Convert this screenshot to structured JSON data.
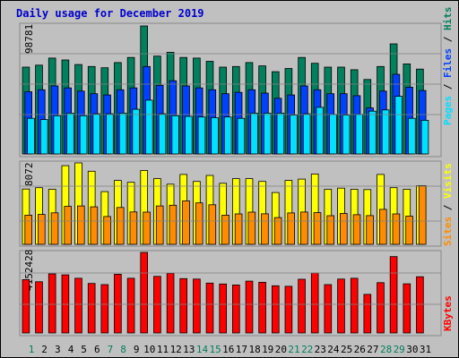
{
  "chart_data": [
    {
      "type": "bar",
      "title": "Daily usage for December 2019",
      "panel": "pages-files-hits",
      "ytick": "98781",
      "categories": [
        "1",
        "2",
        "3",
        "4",
        "5",
        "6",
        "7",
        "8",
        "9",
        "10",
        "11",
        "12",
        "13",
        "14",
        "15",
        "16",
        "17",
        "18",
        "19",
        "20",
        "21",
        "22",
        "23",
        "24",
        "25",
        "26",
        "27",
        "28",
        "29",
        "30",
        "31"
      ],
      "weekend_days": [
        "1",
        "7",
        "8",
        "14",
        "15",
        "21",
        "22",
        "28",
        "29"
      ],
      "series": [
        {
          "name": "Hits",
          "color": "#00805c",
          "values": [
            67000,
            68500,
            74000,
            72500,
            69000,
            67500,
            66500,
            70500,
            74500,
            98781,
            75500,
            78500,
            74500,
            74000,
            71500,
            67000,
            67500,
            70500,
            68000,
            63500,
            66000,
            74500,
            70000,
            67000,
            67000,
            65000,
            57500,
            67500,
            85000,
            69500,
            65500
          ]
        },
        {
          "name": "Files",
          "color": "#0040ff",
          "values": [
            48000,
            49500,
            52500,
            51000,
            48500,
            46500,
            45500,
            49500,
            51000,
            67500,
            53000,
            56500,
            52500,
            51000,
            49500,
            46500,
            47500,
            49500,
            47000,
            43000,
            45500,
            52500,
            49500,
            46500,
            46500,
            45000,
            35500,
            48500,
            61500,
            51500,
            49000
          ]
        },
        {
          "name": "Pages",
          "color": "#00e0ff",
          "values": [
            27500,
            26500,
            29500,
            31500,
            29500,
            31000,
            31000,
            31500,
            34500,
            41500,
            31000,
            29500,
            29000,
            28500,
            28000,
            28500,
            27500,
            31500,
            31500,
            31500,
            30000,
            31000,
            36000,
            30500,
            30000,
            30500,
            33000,
            34000,
            44500,
            27500,
            26000
          ]
        }
      ],
      "right_labels": [
        "Pages",
        "Files",
        "Hits"
      ]
    },
    {
      "type": "bar",
      "panel": "sites-visits",
      "ytick": "8072",
      "categories": [
        "1",
        "2",
        "3",
        "4",
        "5",
        "6",
        "7",
        "8",
        "9",
        "10",
        "11",
        "12",
        "13",
        "14",
        "15",
        "16",
        "17",
        "18",
        "19",
        "20",
        "21",
        "22",
        "23",
        "24",
        "25",
        "26",
        "27",
        "28",
        "29",
        "30",
        "31"
      ],
      "series": [
        {
          "name": "Visits",
          "color": "#ffff00",
          "values": [
            5980,
            6120,
            5950,
            8500,
            8800,
            7900,
            5700,
            6900,
            6700,
            7980,
            7100,
            6500,
            7550,
            6800,
            7450,
            6600,
            7100,
            7100,
            6800,
            5600,
            6900,
            7050,
            7600,
            5950,
            6070,
            5950,
            5920,
            7550,
            6120,
            5950,
            6320
          ]
        },
        {
          "name": "Sites",
          "color": "#ff8c00",
          "values": [
            3150,
            3230,
            3400,
            4100,
            4150,
            4050,
            3010,
            3980,
            3500,
            3480,
            4150,
            4230,
            4700,
            4480,
            4270,
            3150,
            3290,
            3480,
            3300,
            2890,
            3390,
            3490,
            3420,
            3090,
            3340,
            3200,
            3100,
            3780,
            3290,
            3050,
            6340
          ]
        }
      ],
      "right_labels": [
        "Sites",
        "Visits"
      ]
    },
    {
      "type": "bar",
      "panel": "kbytes",
      "ytick": "4152428",
      "categories": [
        "1",
        "2",
        "3",
        "4",
        "5",
        "6",
        "7",
        "8",
        "9",
        "10",
        "11",
        "12",
        "13",
        "14",
        "15",
        "16",
        "17",
        "18",
        "19",
        "20",
        "21",
        "22",
        "23",
        "24",
        "25",
        "26",
        "27",
        "28",
        "29",
        "30",
        "31"
      ],
      "series": [
        {
          "name": "KBytes",
          "color": "#ff0000",
          "values": [
            3180000,
            3050000,
            3520000,
            3460000,
            3260000,
            2950000,
            2880000,
            3500000,
            3260000,
            4800000,
            3370000,
            3550000,
            3240000,
            3210000,
            2970000,
            2920000,
            2860000,
            3090000,
            3020000,
            2810000,
            2780000,
            3200000,
            3570000,
            2880000,
            3210000,
            3260000,
            2300000,
            3000000,
            4550000,
            2930000,
            3350000
          ]
        }
      ],
      "right_labels": [
        "KBytes"
      ]
    }
  ]
}
